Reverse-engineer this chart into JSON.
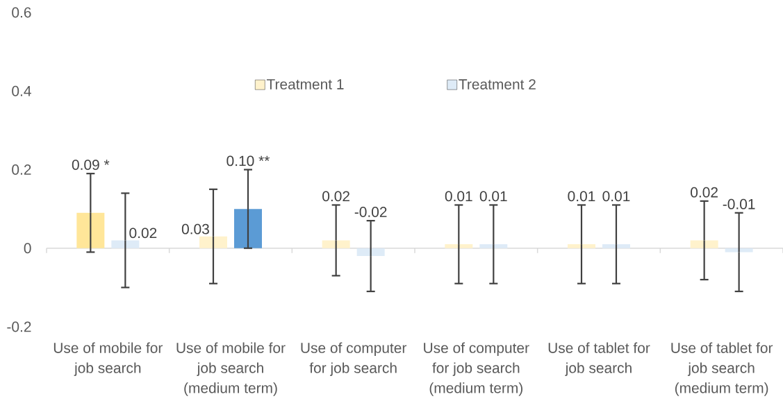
{
  "chart_data": {
    "type": "bar",
    "categories": [
      "Use of mobile for job search",
      "Use of mobile for job search (medium term)",
      "Use of computer for job search",
      "Use of computer for job search (medium term)",
      "Use of tablet for job search",
      "Use of tablet for job search (medium term)"
    ],
    "series": [
      {
        "name": "Treatment 1",
        "color": "#fff2cc",
        "colors": [
          "#ffe699",
          "#fff2cc",
          "#fff2cc",
          "#fff2cc",
          "#fff2cc",
          "#fff2cc"
        ],
        "values": [
          0.09,
          0.03,
          0.02,
          0.01,
          0.01,
          0.02
        ],
        "errors": [
          0.1,
          0.12,
          0.09,
          0.1,
          0.1,
          0.1
        ],
        "value_labels": [
          "0.09 *",
          "0.03",
          "0.02",
          "0.01",
          "0.01",
          "0.02"
        ]
      },
      {
        "name": "Treatment 2",
        "color": "#deebf7",
        "colors": [
          "#deebf7",
          "#5b9bd5",
          "#deebf7",
          "#deebf7",
          "#deebf7",
          "#deebf7"
        ],
        "values": [
          0.02,
          0.1,
          -0.02,
          0.01,
          0.01,
          -0.01
        ],
        "errors": [
          0.12,
          0.1,
          0.09,
          0.1,
          0.1,
          0.1
        ],
        "value_labels": [
          "0.02",
          "0.10 **",
          "-0.02",
          "0.01",
          "0.01",
          "-0.01"
        ]
      }
    ],
    "ylim": [
      -0.2,
      0.6
    ],
    "yticks": [
      -0.2,
      0,
      0.2,
      0.4,
      0.6
    ],
    "legend": "top"
  }
}
